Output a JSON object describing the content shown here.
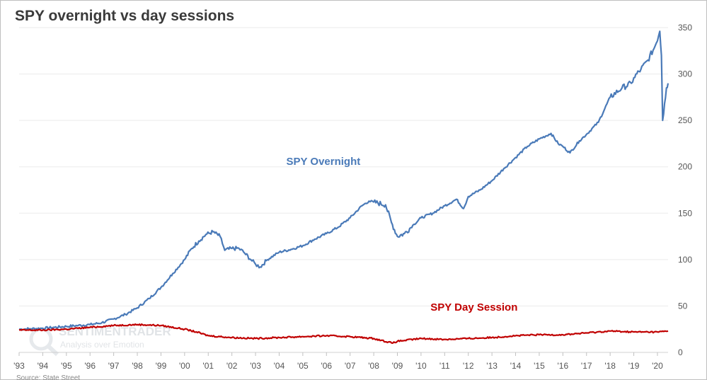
{
  "page": {
    "title": "SPY overnight vs day sessions",
    "source": "Source: State Street"
  },
  "watermark": {
    "brand": "SENTIMENTRADER",
    "tagline": "Analysis over Emotion"
  },
  "colors": {
    "overnight": "#4a7ab8",
    "day_session": "#c00000",
    "grid": "#ebebeb",
    "axis": "#d0d0d0"
  },
  "chart_data": {
    "type": "line",
    "title": "SPY overnight vs day sessions",
    "xlabel": "",
    "ylabel": "",
    "x_range": [
      1993.0,
      2020.45
    ],
    "ylim": [
      0,
      350
    ],
    "y_axis_position": "right",
    "grid": true,
    "x_tick_labels": [
      "'93",
      "'94",
      "'95",
      "'96",
      "'97",
      "'98",
      "'99",
      "'00",
      "'01",
      "'02",
      "'03",
      "'04",
      "'05",
      "'06",
      "'07",
      "'08",
      "'09",
      "'10",
      "'11",
      "'12",
      "'13",
      "'14",
      "'15",
      "'16",
      "'17",
      "'18",
      "'19",
      "'20"
    ],
    "y_ticks": [
      0,
      50,
      100,
      150,
      200,
      250,
      300,
      350
    ],
    "series": [
      {
        "name": "SPY Overnight",
        "color": "#4a7ab8",
        "points": [
          [
            1993.0,
            25
          ],
          [
            1993.5,
            25.5
          ],
          [
            1994.0,
            26
          ],
          [
            1994.5,
            27
          ],
          [
            1995.0,
            28
          ],
          [
            1995.5,
            29
          ],
          [
            1996.0,
            30
          ],
          [
            1996.5,
            32
          ],
          [
            1997.0,
            36
          ],
          [
            1997.5,
            41
          ],
          [
            1998.0,
            48
          ],
          [
            1998.5,
            58
          ],
          [
            1999.0,
            70
          ],
          [
            1999.5,
            85
          ],
          [
            2000.0,
            100
          ],
          [
            2000.3,
            112
          ],
          [
            2000.6,
            120
          ],
          [
            2000.9,
            127
          ],
          [
            2001.2,
            130
          ],
          [
            2001.5,
            125
          ],
          [
            2001.7,
            110
          ],
          [
            2002.0,
            112
          ],
          [
            2002.3,
            112
          ],
          [
            2002.5,
            108
          ],
          [
            2002.8,
            100
          ],
          [
            2003.0,
            95
          ],
          [
            2003.2,
            92
          ],
          [
            2003.5,
            100
          ],
          [
            2004.0,
            108
          ],
          [
            2004.5,
            111
          ],
          [
            2005.0,
            115
          ],
          [
            2005.5,
            122
          ],
          [
            2006.0,
            128
          ],
          [
            2006.5,
            135
          ],
          [
            2007.0,
            145
          ],
          [
            2007.5,
            158
          ],
          [
            2007.8,
            163
          ],
          [
            2008.0,
            162
          ],
          [
            2008.5,
            159
          ],
          [
            2008.75,
            140
          ],
          [
            2009.0,
            125
          ],
          [
            2009.3,
            128
          ],
          [
            2009.7,
            138
          ],
          [
            2010.0,
            145
          ],
          [
            2010.5,
            150
          ],
          [
            2011.0,
            158
          ],
          [
            2011.5,
            165
          ],
          [
            2011.8,
            155
          ],
          [
            2012.0,
            168
          ],
          [
            2012.5,
            175
          ],
          [
            2013.0,
            185
          ],
          [
            2013.5,
            198
          ],
          [
            2014.0,
            210
          ],
          [
            2014.5,
            222
          ],
          [
            2015.0,
            230
          ],
          [
            2015.5,
            236
          ],
          [
            2015.8,
            225
          ],
          [
            2016.0,
            222
          ],
          [
            2016.3,
            215
          ],
          [
            2016.7,
            228
          ],
          [
            2017.0,
            235
          ],
          [
            2017.5,
            248
          ],
          [
            2018.0,
            275
          ],
          [
            2018.5,
            285
          ],
          [
            2018.9,
            290
          ],
          [
            2019.0,
            296
          ],
          [
            2019.3,
            305
          ],
          [
            2019.6,
            315
          ],
          [
            2019.9,
            330
          ],
          [
            2020.1,
            346
          ],
          [
            2020.17,
            320
          ],
          [
            2020.22,
            250
          ],
          [
            2020.3,
            268
          ],
          [
            2020.38,
            285
          ],
          [
            2020.45,
            290
          ]
        ]
      },
      {
        "name": "SPY Day Session",
        "color": "#c00000",
        "points": [
          [
            1993.0,
            24
          ],
          [
            1994.0,
            24
          ],
          [
            1995.0,
            25
          ],
          [
            1996.0,
            27
          ],
          [
            1997.0,
            29
          ],
          [
            1998.0,
            30
          ],
          [
            1999.0,
            29
          ],
          [
            2000.0,
            25
          ],
          [
            2000.5,
            22
          ],
          [
            2001.0,
            18
          ],
          [
            2002.0,
            16
          ],
          [
            2003.0,
            15
          ],
          [
            2004.0,
            16
          ],
          [
            2005.0,
            17
          ],
          [
            2006.0,
            18
          ],
          [
            2007.0,
            17
          ],
          [
            2008.0,
            15
          ],
          [
            2008.8,
            10
          ],
          [
            2009.0,
            12
          ],
          [
            2010.0,
            15
          ],
          [
            2011.0,
            14
          ],
          [
            2012.0,
            15
          ],
          [
            2013.0,
            16
          ],
          [
            2014.0,
            18
          ],
          [
            2015.0,
            19
          ],
          [
            2016.0,
            19
          ],
          [
            2017.0,
            21
          ],
          [
            2018.0,
            23
          ],
          [
            2019.0,
            22
          ],
          [
            2020.0,
            22
          ],
          [
            2020.45,
            23
          ]
        ]
      }
    ],
    "annotations": [
      {
        "text": "SPY Overnight",
        "series": "SPY Overnight",
        "x": 2004.3,
        "y": 202
      },
      {
        "text": "SPY Day Session",
        "series": "SPY Day Session",
        "x": 2010.4,
        "y": 45
      }
    ]
  }
}
